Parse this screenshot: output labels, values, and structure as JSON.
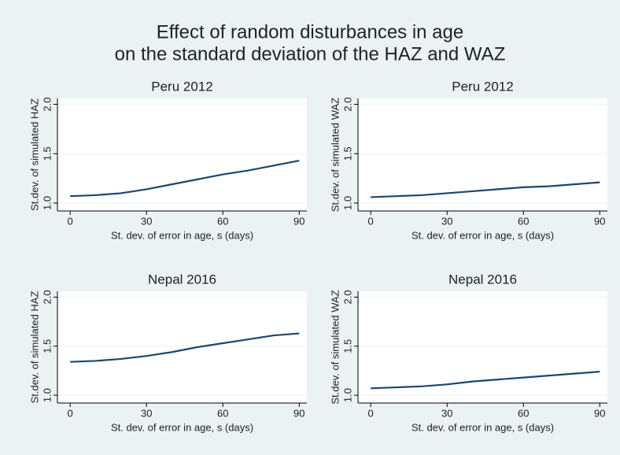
{
  "title": [
    "Effect of random disturbances in age",
    "on the standard deviation of the HAZ and WAZ"
  ],
  "chart_data": [
    {
      "type": "line",
      "title": "Peru 2012",
      "x_label": "St. dev. of error in age, s (days)",
      "y_label": "St.dev. of simulated HAZ",
      "x": [
        0,
        10,
        20,
        30,
        40,
        50,
        60,
        70,
        80,
        90
      ],
      "values": [
        1.07,
        1.08,
        1.1,
        1.14,
        1.19,
        1.24,
        1.29,
        1.33,
        1.38,
        1.43
      ],
      "color": "#1a476f",
      "xlim": [
        -5,
        93
      ],
      "ylim": [
        0.92,
        2.06
      ],
      "xticks": [
        0,
        30,
        60,
        90
      ],
      "yticks": [
        {
          "value": 1,
          "label": "1.0"
        },
        {
          "value": 1.5,
          "label": "1.5"
        },
        {
          "value": 2,
          "label": "2.0"
        }
      ],
      "grid": true
    },
    {
      "type": "line",
      "title": "Peru 2012",
      "x_label": "St. dev. of error in age, s (days)",
      "y_label": "St.dev. of simulated WAZ",
      "x": [
        0,
        10,
        20,
        30,
        40,
        50,
        60,
        70,
        80,
        90
      ],
      "values": [
        1.06,
        1.07,
        1.08,
        1.1,
        1.12,
        1.14,
        1.16,
        1.17,
        1.19,
        1.21
      ],
      "color": "#1a476f",
      "xlim": [
        -5,
        93
      ],
      "ylim": [
        0.92,
        2.06
      ],
      "xticks": [
        0,
        30,
        60,
        90
      ],
      "yticks": [
        {
          "value": 1,
          "label": "1.0"
        },
        {
          "value": 1.5,
          "label": "1.5"
        },
        {
          "value": 2,
          "label": "2.0"
        }
      ],
      "grid": true
    },
    {
      "type": "line",
      "title": "Nepal 2016",
      "x_label": "St. dev. of error in age, s (days)",
      "y_label": "St.dev. of simulated HAZ",
      "x": [
        0,
        10,
        20,
        30,
        40,
        50,
        60,
        70,
        80,
        90
      ],
      "values": [
        1.34,
        1.35,
        1.37,
        1.4,
        1.44,
        1.49,
        1.53,
        1.57,
        1.61,
        1.63
      ],
      "color": "#1a476f",
      "xlim": [
        -5,
        93
      ],
      "ylim": [
        0.92,
        2.06
      ],
      "xticks": [
        0,
        30,
        60,
        90
      ],
      "yticks": [
        {
          "value": 1,
          "label": "1.0"
        },
        {
          "value": 1.5,
          "label": "1.5"
        },
        {
          "value": 2,
          "label": "2.0"
        }
      ],
      "grid": true
    },
    {
      "type": "line",
      "title": "Nepal 2016",
      "x_label": "St. dev. of error in age, s (days)",
      "y_label": "St.dev. of simulated WAZ",
      "x": [
        0,
        10,
        20,
        30,
        40,
        50,
        60,
        70,
        80,
        90
      ],
      "values": [
        1.07,
        1.08,
        1.09,
        1.11,
        1.14,
        1.16,
        1.18,
        1.2,
        1.22,
        1.24
      ],
      "color": "#1a476f",
      "xlim": [
        -5,
        93
      ],
      "ylim": [
        0.92,
        2.06
      ],
      "xticks": [
        0,
        30,
        60,
        90
      ],
      "yticks": [
        {
          "value": 1,
          "label": "1.0"
        },
        {
          "value": 1.5,
          "label": "1.5"
        },
        {
          "value": 2,
          "label": "2.0"
        }
      ],
      "grid": true
    }
  ]
}
